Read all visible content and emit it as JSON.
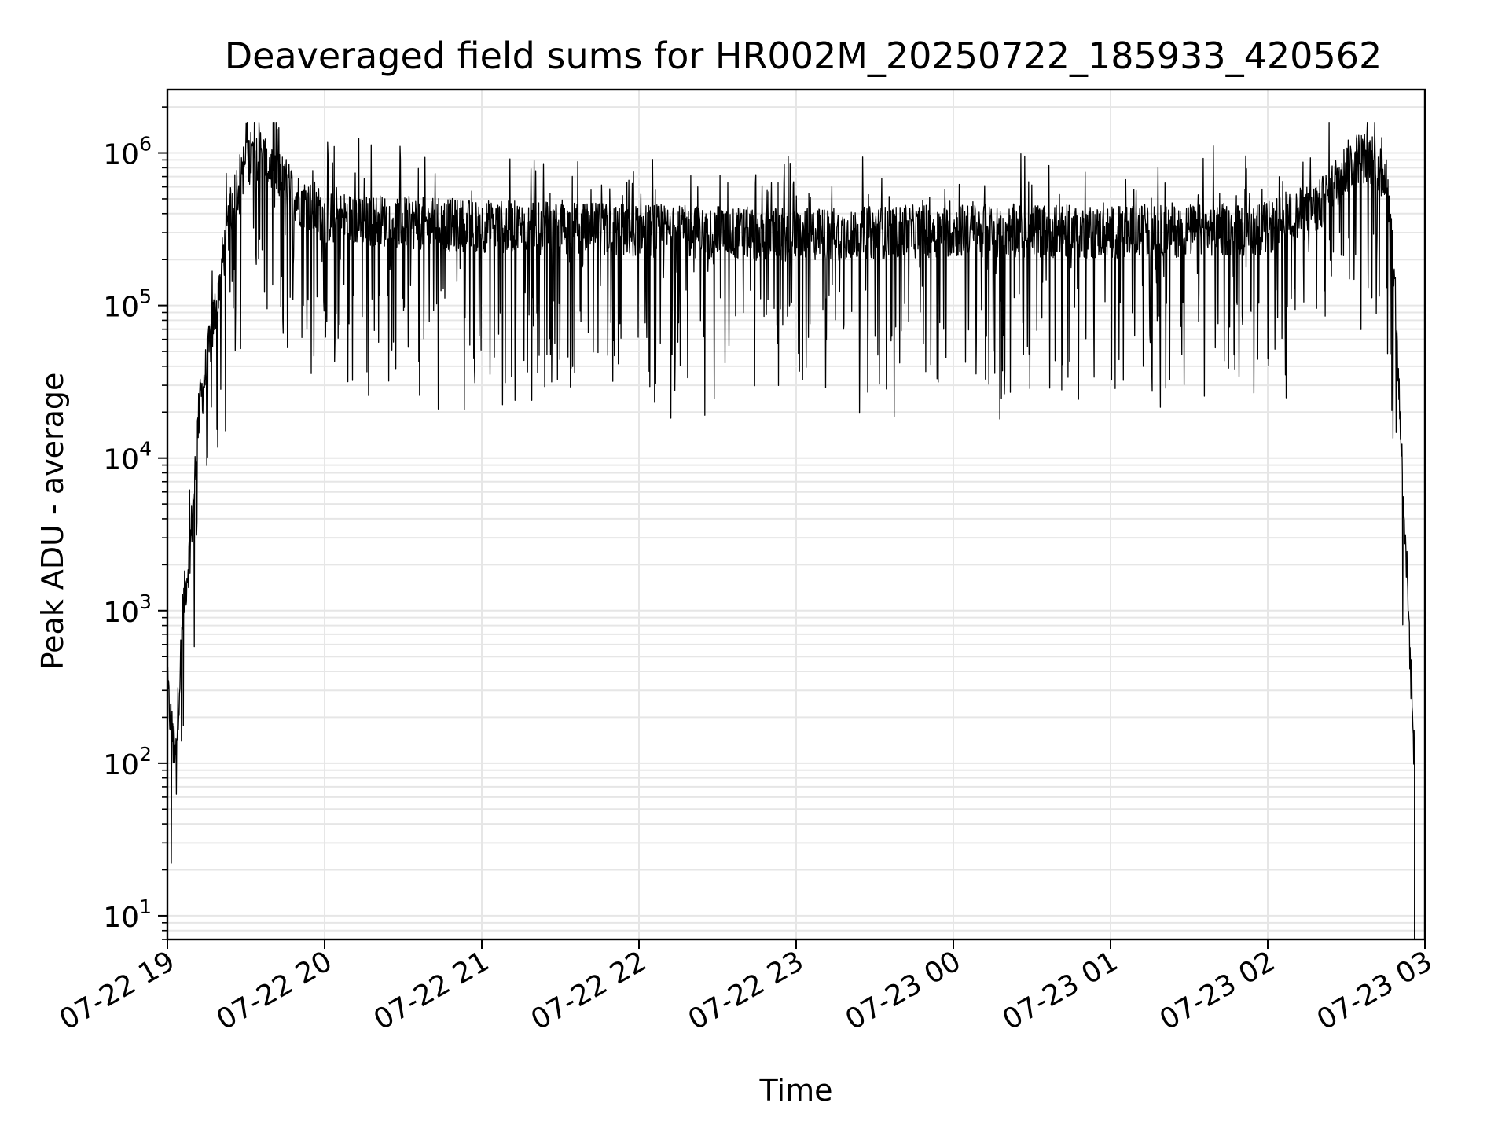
{
  "chart_data": {
    "type": "line",
    "title": "Deaveraged field sums for HR002M_20250722_185933_420562",
    "xlabel": "Time",
    "ylabel": "Peak ADU - average",
    "y_scale": "log",
    "ylim": [
      7,
      2600000
    ],
    "xlim": [
      "2025-07-22 19:00",
      "2025-07-23 03:00"
    ],
    "x_ticks": [
      "07-22 19",
      "07-22 20",
      "07-22 21",
      "07-22 22",
      "07-22 23",
      "07-23 00",
      "07-23 01",
      "07-23 02",
      "07-23 03"
    ],
    "y_ticks": [
      {
        "base": "10",
        "exp": "1",
        "value": 10
      },
      {
        "base": "10",
        "exp": "2",
        "value": 100
      },
      {
        "base": "10",
        "exp": "3",
        "value": 1000
      },
      {
        "base": "10",
        "exp": "4",
        "value": 10000
      },
      {
        "base": "10",
        "exp": "5",
        "value": 100000
      },
      {
        "base": "10",
        "exp": "6",
        "value": 1000000
      }
    ],
    "grid": true,
    "line_color": "#000000",
    "grid_color": "#e6e6e6",
    "series": [
      {
        "x": [
          "2025-07-22 19:00",
          "2025-07-22 19:03",
          "2025-07-22 19:06",
          "2025-07-22 19:09",
          "2025-07-22 19:12",
          "2025-07-22 19:15",
          "2025-07-22 19:20",
          "2025-07-22 19:25",
          "2025-07-22 19:30",
          "2025-07-22 19:35",
          "2025-07-22 19:40",
          "2025-07-22 19:50",
          "2025-07-22 20:00",
          "2025-07-22 20:30",
          "2025-07-22 21:00",
          "2025-07-22 21:30",
          "2025-07-22 22:00",
          "2025-07-22 22:30",
          "2025-07-22 23:00",
          "2025-07-22 23:30",
          "2025-07-23 00:00",
          "2025-07-23 00:30",
          "2025-07-23 01:00",
          "2025-07-23 01:30",
          "2025-07-23 02:00",
          "2025-07-23 02:10",
          "2025-07-23 02:20",
          "2025-07-23 02:25",
          "2025-07-23 02:30",
          "2025-07-23 02:35",
          "2025-07-23 02:40",
          "2025-07-23 02:45",
          "2025-07-23 02:48",
          "2025-07-23 02:50",
          "2025-07-23 02:53",
          "2025-07-23 02:56"
        ],
        "y": [
          300,
          100,
          1000,
          3000,
          20000,
          40000,
          150000,
          500000,
          900000,
          1000000,
          800000,
          500000,
          380000,
          350000,
          330000,
          320000,
          310000,
          300000,
          290000,
          300000,
          310000,
          310000,
          300000,
          310000,
          320000,
          380000,
          450000,
          600000,
          800000,
          950000,
          900000,
          700000,
          200000,
          30000,
          2000,
          100
        ]
      }
    ]
  }
}
